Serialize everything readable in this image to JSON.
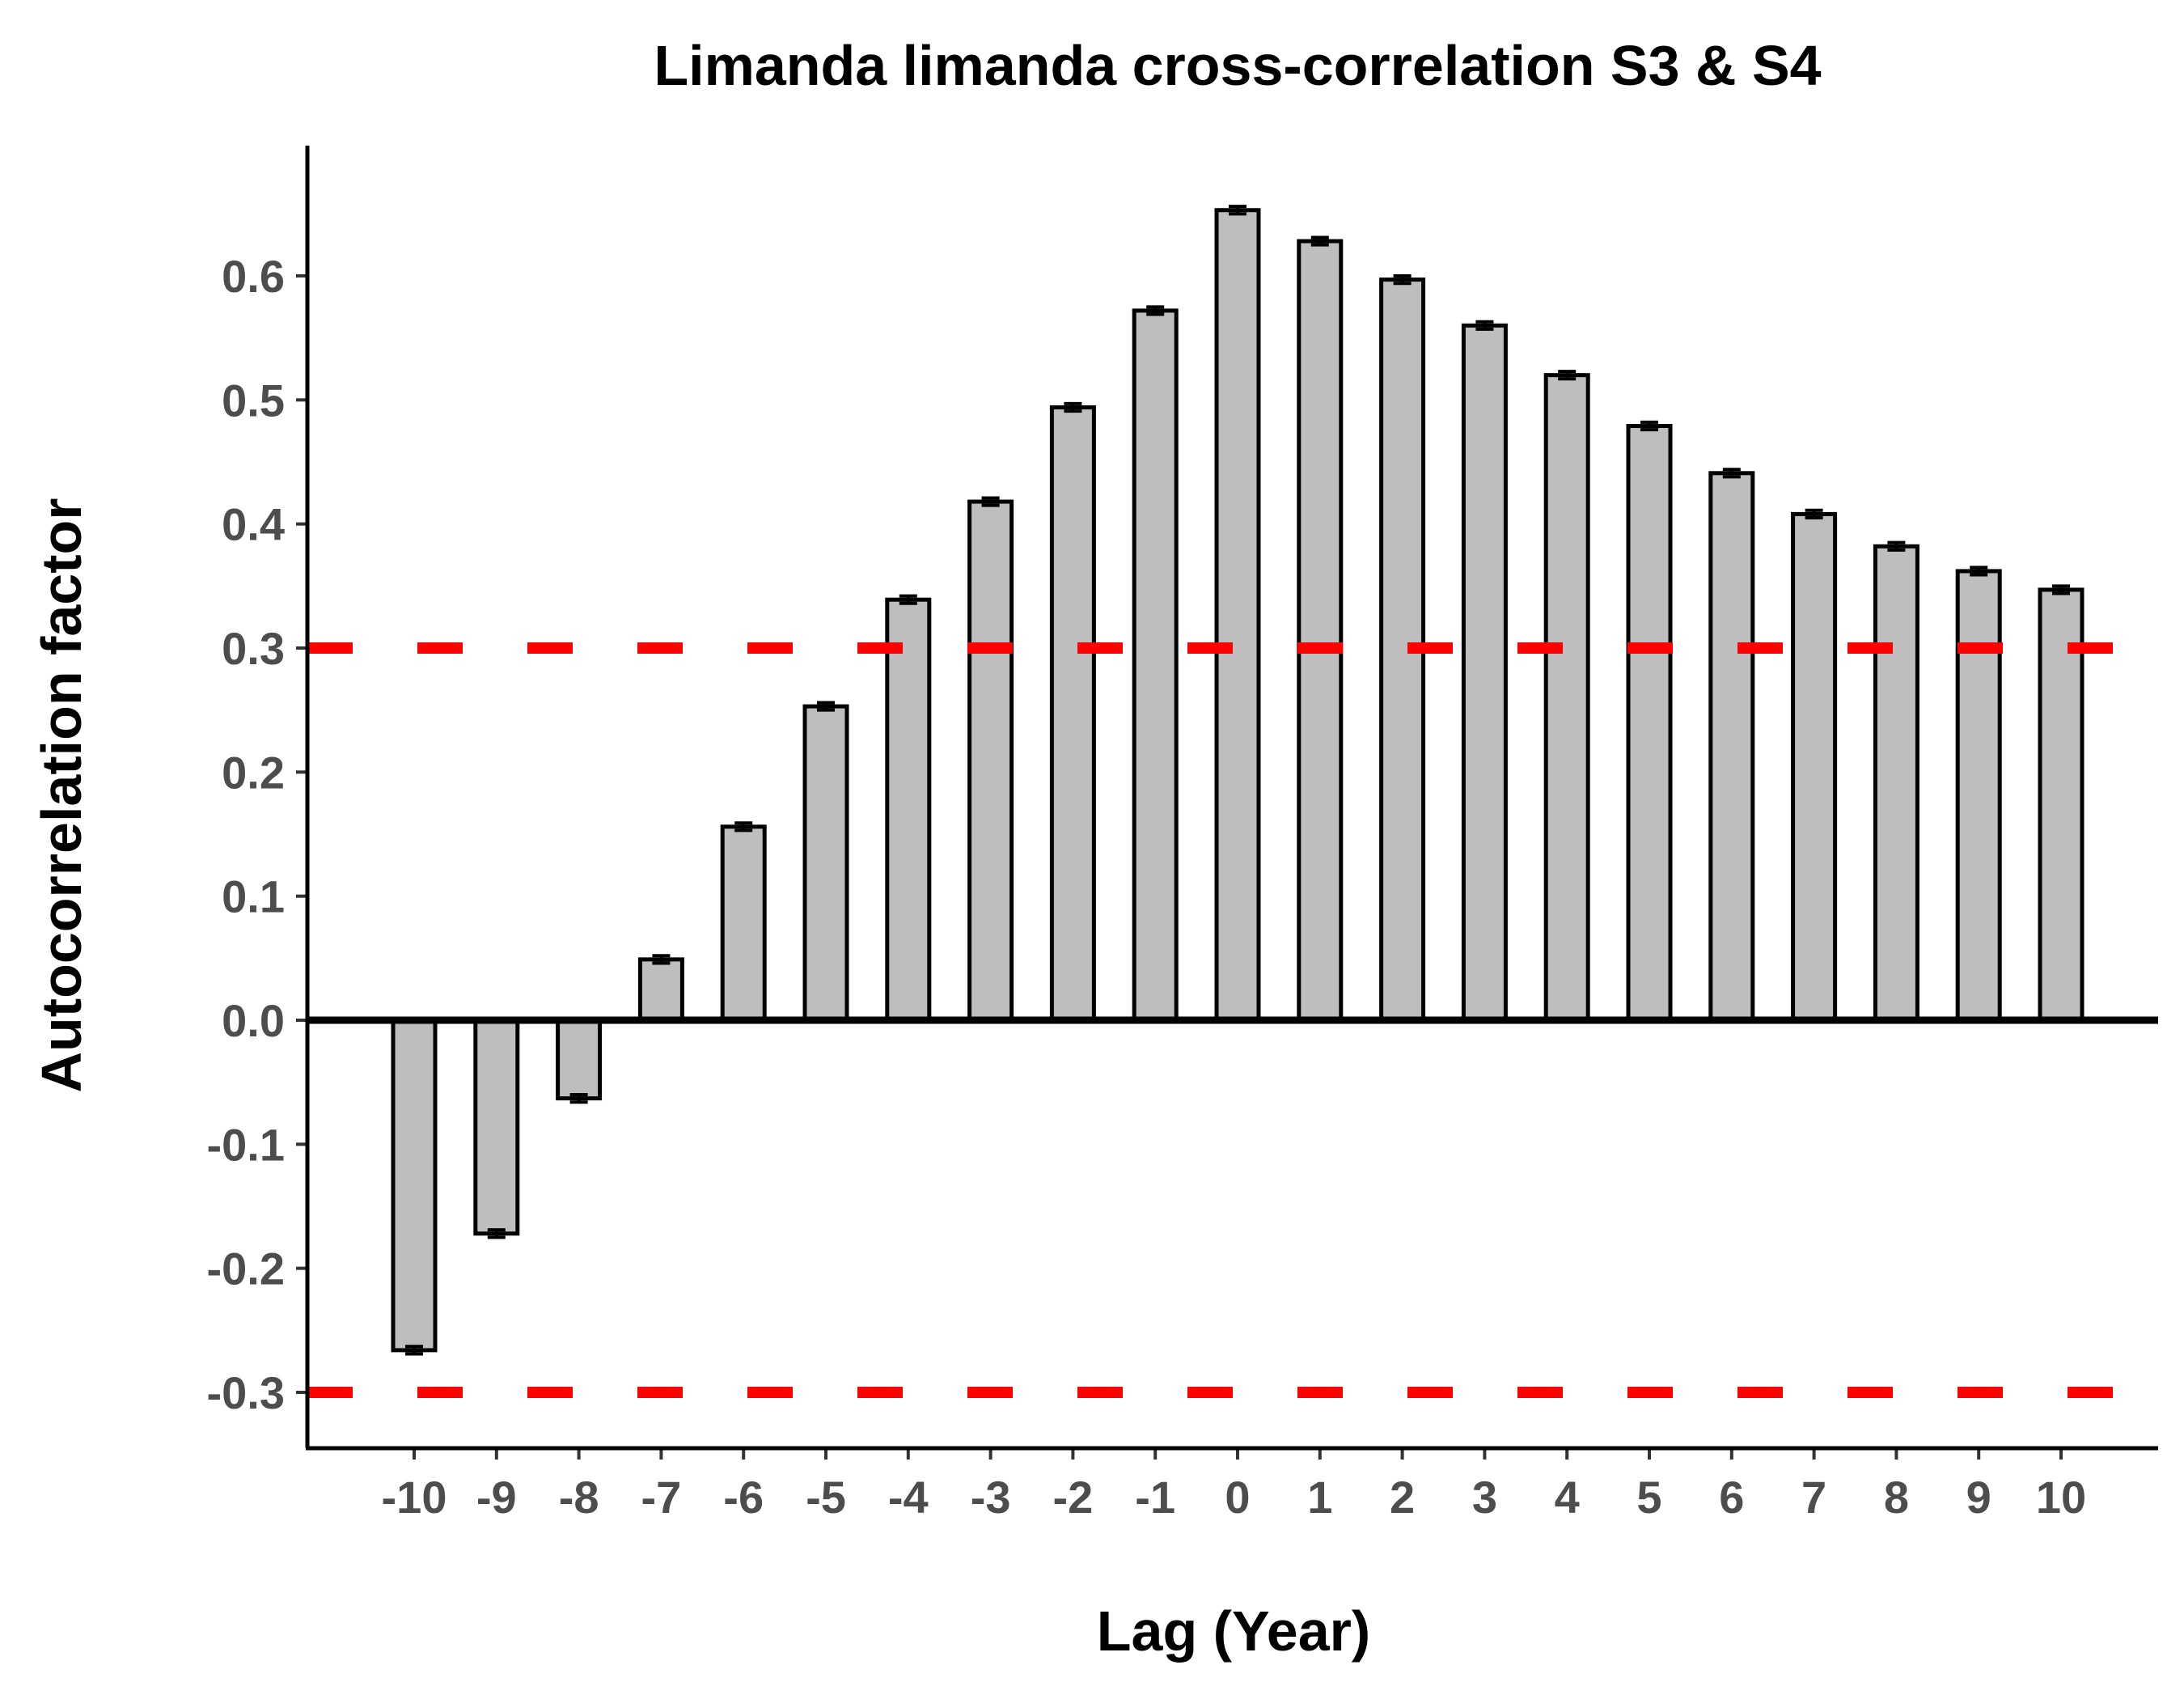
{
  "chart_data": {
    "type": "bar",
    "title": "Limanda limanda cross-correlation S3 & S4",
    "xlabel": "Lag (Year)",
    "ylabel": "Autocorrelation factor",
    "categories": [
      "-10",
      "-9",
      "-8",
      "-7",
      "-6",
      "-5",
      "-4",
      "-3",
      "-2",
      "-1",
      "0",
      "1",
      "2",
      "3",
      "4",
      "5",
      "6",
      "7",
      "8",
      "9",
      "10"
    ],
    "values": [
      -0.266,
      -0.172,
      -0.063,
      0.049,
      0.156,
      0.253,
      0.339,
      0.418,
      0.494,
      0.572,
      0.653,
      0.628,
      0.597,
      0.56,
      0.52,
      0.479,
      0.441,
      0.408,
      0.382,
      0.362,
      0.347
    ],
    "error": [
      0.003,
      0.003,
      0.003,
      0.003,
      0.003,
      0.003,
      0.003,
      0.003,
      0.003,
      0.003,
      0.003,
      0.003,
      0.003,
      0.003,
      0.003,
      0.003,
      0.003,
      0.003,
      0.003,
      0.003,
      0.003
    ],
    "ylim": [
      -0.345,
      0.705
    ],
    "yticks": [
      -0.3,
      -0.2,
      -0.1,
      0.0,
      0.1,
      0.2,
      0.3,
      0.4,
      0.5,
      0.6
    ],
    "ytick_labels": [
      "-0.3",
      "-0.2",
      "-0.1",
      "0.0",
      "0.1",
      "0.2",
      "0.3",
      "0.4",
      "0.5",
      "0.6"
    ],
    "threshold_lines": [
      0.3,
      -0.3
    ],
    "grid": false,
    "colors": {
      "bar_fill": "#bebebe",
      "bar_stroke": "#000000",
      "threshold": "#ff0000",
      "zero_line": "#000000",
      "tick_text": "#4d4d4d"
    }
  }
}
